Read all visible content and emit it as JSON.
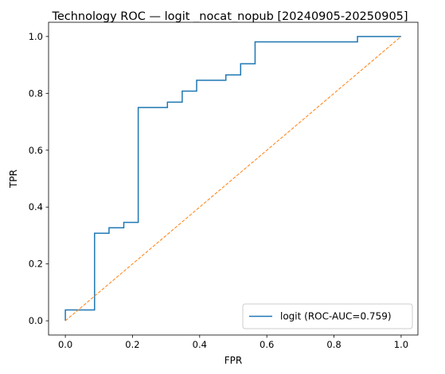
{
  "chart_data": {
    "type": "line",
    "title": "Technology ROC — logit _nocat_nopub [20240905-20250905]",
    "xlabel": "FPR",
    "ylabel": "TPR",
    "xlim": [
      -0.05,
      1.05
    ],
    "ylim": [
      -0.05,
      1.05
    ],
    "xticks": [
      0.0,
      0.2,
      0.4,
      0.6,
      0.8,
      1.0
    ],
    "yticks": [
      0.0,
      0.2,
      0.4,
      0.6,
      0.8,
      1.0
    ],
    "tick_labels_x": [
      "0.0",
      "0.2",
      "0.4",
      "0.6",
      "0.8",
      "1.0"
    ],
    "tick_labels_y": [
      "0.0",
      "0.2",
      "0.4",
      "0.6",
      "0.8",
      "1.0"
    ],
    "grid": false,
    "legend_position": "bottom-right",
    "series": [
      {
        "name": "logit (ROC-AUC=0.759)",
        "color": "#1f77b4",
        "style": "solid",
        "x": [
          0.0,
          0.0,
          0.087,
          0.087,
          0.13,
          0.13,
          0.174,
          0.174,
          0.217,
          0.217,
          0.304,
          0.304,
          0.348,
          0.348,
          0.391,
          0.391,
          0.478,
          0.478,
          0.522,
          0.522,
          0.565,
          0.565,
          0.87,
          0.87,
          1.0
        ],
        "y": [
          0.0,
          0.038,
          0.038,
          0.308,
          0.308,
          0.327,
          0.327,
          0.346,
          0.346,
          0.75,
          0.75,
          0.769,
          0.769,
          0.808,
          0.808,
          0.846,
          0.846,
          0.865,
          0.865,
          0.904,
          0.904,
          0.981,
          0.981,
          1.0,
          1.0
        ]
      },
      {
        "color": "#ff7f0e",
        "style": "dashed",
        "x": [
          0.0,
          1.0
        ],
        "y": [
          0.0,
          1.0
        ]
      }
    ]
  }
}
